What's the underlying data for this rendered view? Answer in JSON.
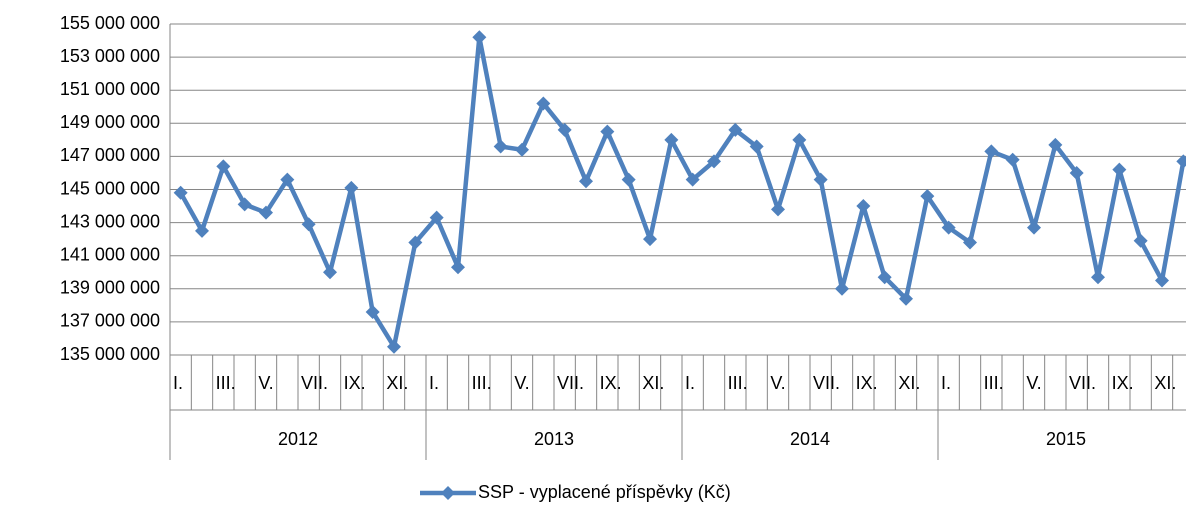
{
  "chart_data": {
    "type": "line",
    "categories": [
      "I.",
      null,
      "III.",
      null,
      "V.",
      null,
      "VII.",
      null,
      "IX.",
      null,
      "XI.",
      null,
      "I.",
      null,
      "III.",
      null,
      "V.",
      null,
      "VII.",
      null,
      "IX.",
      null,
      "XI.",
      null,
      "I.",
      null,
      "III.",
      null,
      "V.",
      null,
      "VII.",
      null,
      "IX.",
      null,
      "XI.",
      null,
      "I.",
      null,
      "III.",
      null,
      "V.",
      null,
      "VII.",
      null,
      "IX.",
      null,
      "XI.",
      null
    ],
    "years": [
      "2012",
      "2013",
      "2014",
      "2015"
    ],
    "series": [
      {
        "name": "SSP - vyplacené příspěvky (Kč)",
        "color": "#4f81bd",
        "values": [
          144800000,
          142500000,
          146400000,
          144100000,
          143600000,
          145600000,
          142900000,
          140000000,
          145100000,
          137600000,
          135500000,
          141800000,
          143300000,
          140300000,
          154200000,
          147600000,
          147400000,
          150200000,
          148600000,
          145500000,
          148500000,
          145600000,
          142000000,
          148000000,
          145600000,
          146700000,
          148600000,
          147600000,
          143800000,
          148000000,
          145600000,
          139000000,
          144000000,
          139700000,
          138400000,
          144600000,
          142700000,
          141800000,
          147300000,
          146800000,
          142700000,
          147700000,
          146000000,
          139700000,
          146200000,
          141900000,
          139500000,
          146700000
        ]
      }
    ],
    "ylim": [
      135000000,
      155000000
    ],
    "yticks": [
      {
        "value": 135000000,
        "label": "135 000 000"
      },
      {
        "value": 137000000,
        "label": "137 000 000"
      },
      {
        "value": 139000000,
        "label": "139 000 000"
      },
      {
        "value": 141000000,
        "label": "141 000 000"
      },
      {
        "value": 143000000,
        "label": "143 000 000"
      },
      {
        "value": 145000000,
        "label": "145 000 000"
      },
      {
        "value": 147000000,
        "label": "147 000 000"
      },
      {
        "value": 149000000,
        "label": "149 000 000"
      },
      {
        "value": 151000000,
        "label": "151 000 000"
      },
      {
        "value": 153000000,
        "label": "153 000 000"
      },
      {
        "value": 155000000,
        "label": "155 000 000"
      }
    ],
    "grid": true,
    "legend": "bottom"
  }
}
